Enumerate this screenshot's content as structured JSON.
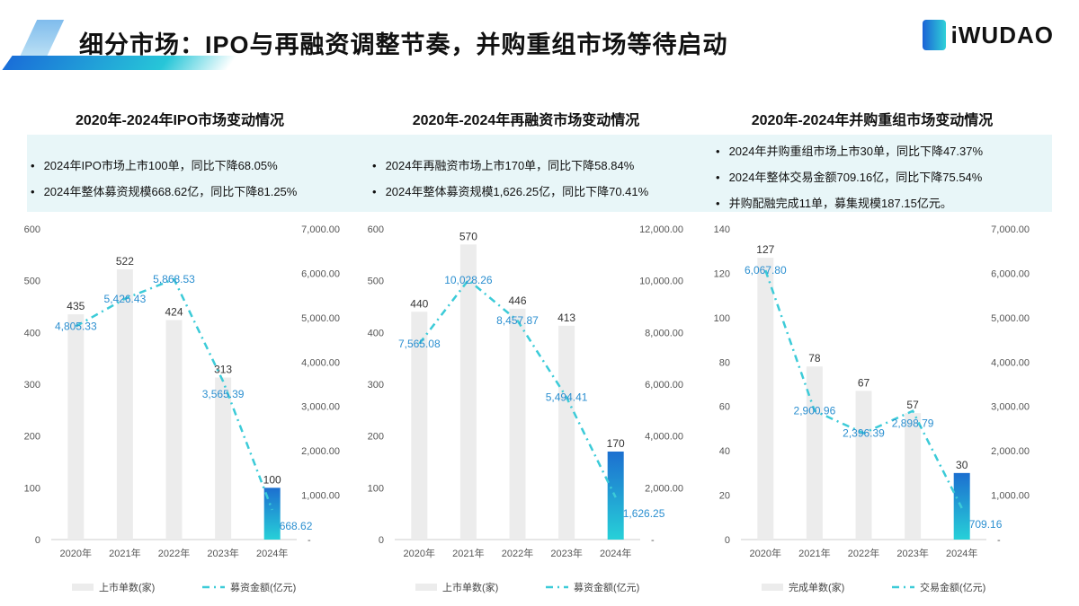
{
  "header": {
    "title": "细分市场：IPO与再融资调整节奏，并购重组市场等待启动",
    "logo": "iWUDAO"
  },
  "colors": {
    "bar": "#ececec",
    "bar_highlight_top": "#1c6fd0",
    "bar_highlight_bottom": "#27d0d8",
    "line": "#3ccbd8",
    "line_label": "#2b8fd0",
    "info_bg": "#e8f6f8"
  },
  "sections": [
    {
      "title": "2020年-2024年IPO市场变动情况",
      "bullets": [
        "2024年IPO市场上市100单，同比下降68.05%",
        "2024年整体募资规模668.62亿，同比下降81.25%"
      ]
    },
    {
      "title": "2020年-2024年再融资市场变动情况",
      "bullets": [
        "2024年再融资市场上市170单，同比下降58.84%",
        "2024年整体募资规模1,626.25亿，同比下降70.41%"
      ]
    },
    {
      "title": "2020年-2024年并购重组市场变动情况",
      "bullets": [
        "2024年并购重组市场上市30单，同比下降47.37%",
        "2024年整体交易金额709.16亿，同比下降75.54%",
        "并购配融完成11单，募集规模187.15亿元。"
      ]
    }
  ],
  "chart_data": [
    {
      "type": "bar",
      "categories": [
        "2020年",
        "2021年",
        "2022年",
        "2023年",
        "2024年"
      ],
      "series": [
        {
          "name": "上市单数(家)",
          "type": "bar",
          "axis": "left",
          "values": [
            435,
            522,
            424,
            313,
            100
          ]
        },
        {
          "name": "募资金额(亿元)",
          "type": "line",
          "axis": "right",
          "values": [
            4805.33,
            5426.43,
            5868.53,
            3565.39,
            668.62
          ],
          "labels": [
            "4,805.33",
            "5,426.43",
            "5,868.53",
            "3,565.39",
            "668.62"
          ]
        }
      ],
      "ylim_left": [
        0,
        600
      ],
      "yticks_left": [
        "0",
        "100",
        "200",
        "300",
        "400",
        "500",
        "600"
      ],
      "ylim_right": [
        0,
        7000
      ],
      "yticks_right": [
        "-",
        "1,000.00",
        "2,000.00",
        "3,000.00",
        "4,000.00",
        "5,000.00",
        "6,000.00",
        "7,000.00"
      ],
      "legend": "bottom"
    },
    {
      "type": "bar",
      "categories": [
        "2020年",
        "2021年",
        "2022年",
        "2023年",
        "2024年"
      ],
      "series": [
        {
          "name": "上市单数(家)",
          "type": "bar",
          "axis": "left",
          "values": [
            440,
            570,
            446,
            413,
            170
          ]
        },
        {
          "name": "募资金额(亿元)",
          "type": "line",
          "axis": "right",
          "values": [
            7565.08,
            10028.26,
            8457.87,
            5494.41,
            1626.25
          ],
          "labels": [
            "7,565.08",
            "10,028.26",
            "8,457.87",
            "5,494.41",
            "1,626.25"
          ]
        }
      ],
      "ylim_left": [
        0,
        600
      ],
      "yticks_left": [
        "0",
        "100",
        "200",
        "300",
        "400",
        "500",
        "600"
      ],
      "ylim_right": [
        0,
        12000
      ],
      "yticks_right": [
        "-",
        "2,000.00",
        "4,000.00",
        "6,000.00",
        "8,000.00",
        "10,000.00",
        "12,000.00"
      ],
      "legend": "bottom"
    },
    {
      "type": "bar",
      "categories": [
        "2020年",
        "2021年",
        "2022年",
        "2023年",
        "2024年"
      ],
      "series": [
        {
          "name": "完成单数(家)",
          "type": "bar",
          "axis": "left",
          "values": [
            127,
            78,
            67,
            57,
            30
          ]
        },
        {
          "name": "交易金额(亿元)",
          "type": "line",
          "axis": "right",
          "values": [
            6067.8,
            2900.96,
            2396.39,
            2898.79,
            709.16
          ],
          "labels": [
            "6,067.80",
            "2,900.96",
            "2,396.39",
            "2,898.79",
            "709.16"
          ]
        }
      ],
      "ylim_left": [
        0,
        140
      ],
      "yticks_left": [
        "0",
        "20",
        "40",
        "60",
        "80",
        "100",
        "120",
        "140"
      ],
      "ylim_right": [
        0,
        7000
      ],
      "yticks_right": [
        "-",
        "1,000.00",
        "2,000.00",
        "3,000.00",
        "4,000.00",
        "5,000.00",
        "6,000.00",
        "7,000.00"
      ],
      "legend": "bottom"
    }
  ]
}
